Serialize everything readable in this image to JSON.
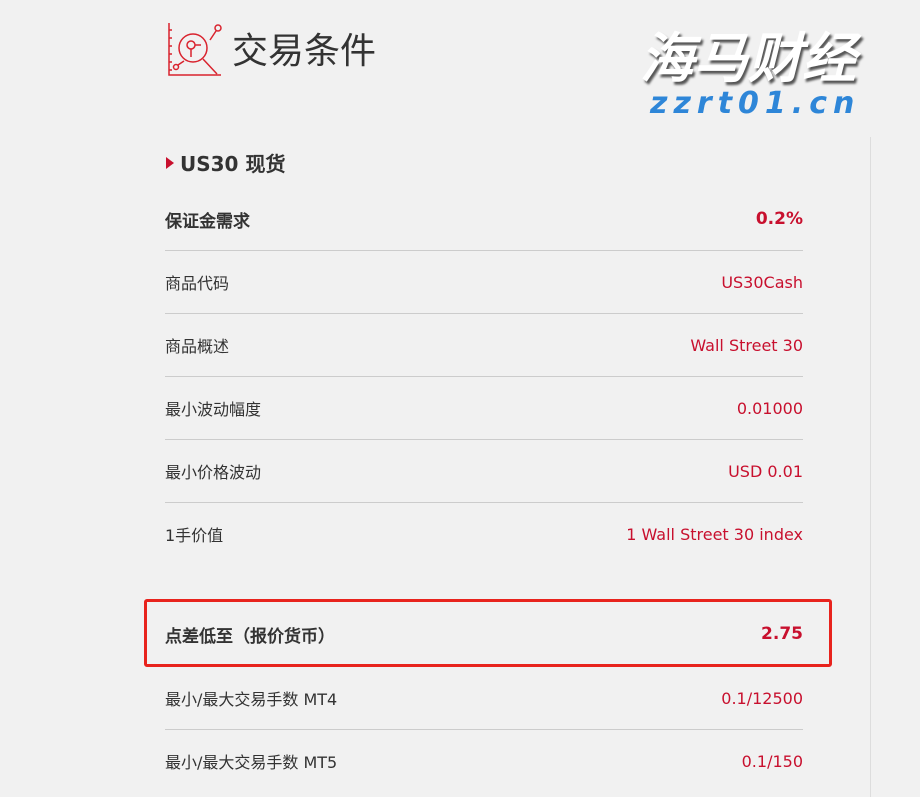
{
  "header": {
    "title": "交易条件",
    "icon": "chart-magnifier-icon"
  },
  "section": {
    "title": "US30 现货"
  },
  "rows": [
    {
      "label": "保证金需求",
      "value": "0.2%"
    },
    {
      "label": "商品代码",
      "value": "US30Cash"
    },
    {
      "label": "商品概述",
      "value": "Wall Street 30"
    },
    {
      "label": "最小波动幅度",
      "value": "0.01000"
    },
    {
      "label": "最小价格波动",
      "value": "USD 0.01"
    },
    {
      "label": "1手价值",
      "value": "1 Wall Street 30 index"
    },
    {
      "label": "点差低至（报价货币）",
      "value": "2.75"
    },
    {
      "label": "最小/最大交易手数 MT4",
      "value": "0.1/12500"
    },
    {
      "label": "最小/最大交易手数 MT5",
      "value": "0.1/150"
    }
  ],
  "watermark": {
    "text": "海马财经",
    "url": "zzrt01.cn"
  },
  "colors": {
    "accent": "#c8102e",
    "highlight": "#e8231d"
  }
}
